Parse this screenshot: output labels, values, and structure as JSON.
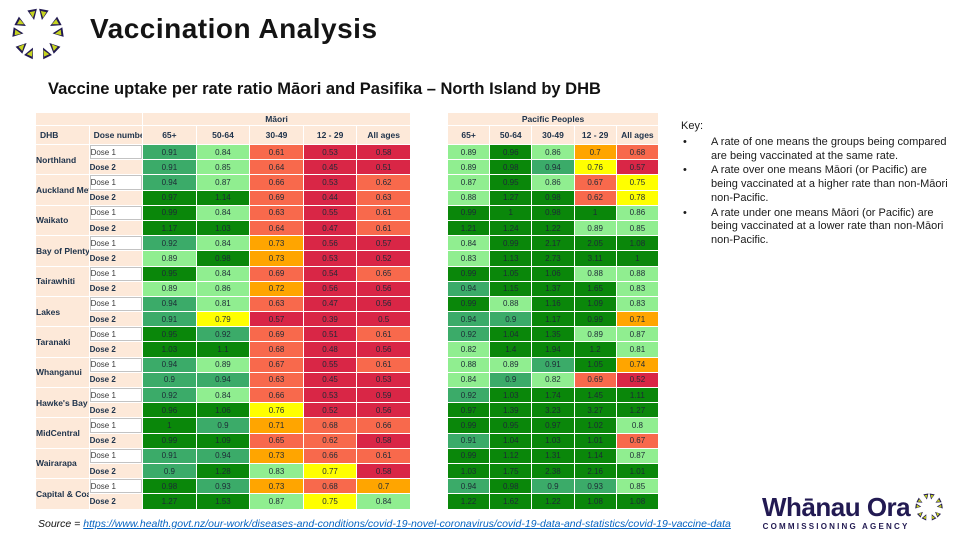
{
  "header": {
    "title": "Vaccination Analysis"
  },
  "subtitle": "Vaccine uptake per rate ratio Māori and Pasifika – North Island by DHB",
  "colors": {
    "dg": "#0a870a",
    "mg": "#3bab69",
    "lg": "#90ee90",
    "ye": "#ffff00",
    "am": "#ffa500",
    "sa": "#f8694c",
    "re": "#d92646",
    "header_peach": "#fde9d9",
    "navy_text": "#20344c",
    "link_blue": "#0563c1",
    "brand_navy": "#221a52",
    "brand_yellow": "#c6d420"
  },
  "tables": {
    "maori": {
      "group_header": "Māori",
      "row_header_cols": [
        "DHB",
        "Dose number"
      ],
      "value_cols": [
        "65+",
        "50-64",
        "30-49",
        "12 - 29",
        "All ages"
      ],
      "rows": [
        {
          "dhb": "Northland",
          "doses": [
            {
              "label": "Dose 1",
              "values": [
                "0.91",
                "0.84",
                "0.61",
                "0.53",
                "0.58"
              ],
              "colors": [
                "mg",
                "lg",
                "sa",
                "re",
                "re"
              ]
            },
            {
              "label": "Dose 2",
              "values": [
                "0.91",
                "0.85",
                "0.64",
                "0.45",
                "0.51"
              ],
              "colors": [
                "mg",
                "lg",
                "sa",
                "re",
                "re"
              ]
            }
          ]
        },
        {
          "dhb": "Auckland Metro",
          "doses": [
            {
              "label": "Dose 1",
              "values": [
                "0.94",
                "0.87",
                "0.66",
                "0.53",
                "0.62"
              ],
              "colors": [
                "mg",
                "lg",
                "sa",
                "re",
                "sa"
              ]
            },
            {
              "label": "Dose 2",
              "values": [
                "0.97",
                "1.14",
                "0.69",
                "0.44",
                "0.63"
              ],
              "colors": [
                "dg",
                "dg",
                "sa",
                "re",
                "sa"
              ]
            }
          ]
        },
        {
          "dhb": "Waikato",
          "doses": [
            {
              "label": "Dose 1",
              "values": [
                "0.99",
                "0.84",
                "0.63",
                "0.55",
                "0.61"
              ],
              "colors": [
                "dg",
                "lg",
                "sa",
                "re",
                "sa"
              ]
            },
            {
              "label": "Dose 2",
              "values": [
                "1.17",
                "1.03",
                "0.64",
                "0.47",
                "0.61"
              ],
              "colors": [
                "dg",
                "dg",
                "sa",
                "re",
                "sa"
              ]
            }
          ]
        },
        {
          "dhb": "Bay of Plenty",
          "doses": [
            {
              "label": "Dose 1",
              "values": [
                "0.92",
                "0.84",
                "0.73",
                "0.56",
                "0.57"
              ],
              "colors": [
                "mg",
                "lg",
                "am",
                "re",
                "re"
              ]
            },
            {
              "label": "Dose 2",
              "values": [
                "0.89",
                "0.98",
                "0.73",
                "0.53",
                "0.52"
              ],
              "colors": [
                "lg",
                "dg",
                "am",
                "re",
                "re"
              ]
            }
          ]
        },
        {
          "dhb": "Tairawhiti",
          "doses": [
            {
              "label": "Dose 1",
              "values": [
                "0.95",
                "0.84",
                "0.69",
                "0.54",
                "0.65"
              ],
              "colors": [
                "dg",
                "lg",
                "sa",
                "re",
                "sa"
              ]
            },
            {
              "label": "Dose 2",
              "values": [
                "0.89",
                "0.86",
                "0.72",
                "0.56",
                "0.56"
              ],
              "colors": [
                "lg",
                "lg",
                "am",
                "re",
                "re"
              ]
            }
          ]
        },
        {
          "dhb": "Lakes",
          "doses": [
            {
              "label": "Dose 1",
              "values": [
                "0.94",
                "0.81",
                "0.63",
                "0.47",
                "0.56"
              ],
              "colors": [
                "mg",
                "lg",
                "sa",
                "re",
                "re"
              ]
            },
            {
              "label": "Dose 2",
              "values": [
                "0.91",
                "0.79",
                "0.57",
                "0.39",
                "0.5"
              ],
              "colors": [
                "mg",
                "ye",
                "re",
                "re",
                "re"
              ]
            }
          ]
        },
        {
          "dhb": "Taranaki",
          "doses": [
            {
              "label": "Dose 1",
              "values": [
                "0.95",
                "0.92",
                "0.69",
                "0.51",
                "0.61"
              ],
              "colors": [
                "dg",
                "mg",
                "sa",
                "re",
                "sa"
              ]
            },
            {
              "label": "Dose 2",
              "values": [
                "1.03",
                "1.1",
                "0.68",
                "0.48",
                "0.56"
              ],
              "colors": [
                "dg",
                "dg",
                "sa",
                "re",
                "re"
              ]
            }
          ]
        },
        {
          "dhb": "Whanganui",
          "doses": [
            {
              "label": "Dose 1",
              "values": [
                "0.94",
                "0.89",
                "0.67",
                "0.55",
                "0.61"
              ],
              "colors": [
                "mg",
                "lg",
                "sa",
                "re",
                "sa"
              ]
            },
            {
              "label": "Dose 2",
              "values": [
                "0.9",
                "0.94",
                "0.63",
                "0.45",
                "0.53"
              ],
              "colors": [
                "mg",
                "mg",
                "sa",
                "re",
                "re"
              ]
            }
          ]
        },
        {
          "dhb": "Hawke's Bay",
          "doses": [
            {
              "label": "Dose 1",
              "values": [
                "0.92",
                "0.84",
                "0.66",
                "0.53",
                "0.59"
              ],
              "colors": [
                "mg",
                "lg",
                "sa",
                "re",
                "re"
              ]
            },
            {
              "label": "Dose 2",
              "values": [
                "0.96",
                "1.06",
                "0.76",
                "0.52",
                "0.56"
              ],
              "colors": [
                "dg",
                "dg",
                "ye",
                "re",
                "re"
              ]
            }
          ]
        },
        {
          "dhb": "MidCentral",
          "doses": [
            {
              "label": "Dose 1",
              "values": [
                "1",
                "0.9",
                "0.71",
                "0.68",
                "0.66"
              ],
              "colors": [
                "dg",
                "mg",
                "am",
                "sa",
                "sa"
              ]
            },
            {
              "label": "Dose 2",
              "values": [
                "0.99",
                "1.09",
                "0.65",
                "0.62",
                "0.58"
              ],
              "colors": [
                "dg",
                "dg",
                "sa",
                "sa",
                "re"
              ]
            }
          ]
        },
        {
          "dhb": "Wairarapa",
          "doses": [
            {
              "label": "Dose 1",
              "values": [
                "0.91",
                "0.94",
                "0.73",
                "0.66",
                "0.61"
              ],
              "colors": [
                "mg",
                "mg",
                "am",
                "sa",
                "sa"
              ]
            },
            {
              "label": "Dose 2",
              "values": [
                "0.9",
                "1.28",
                "0.83",
                "0.77",
                "0.58"
              ],
              "colors": [
                "mg",
                "dg",
                "lg",
                "ye",
                "re"
              ]
            }
          ]
        },
        {
          "dhb": "Capital & Coast and Hutt Valley",
          "doses": [
            {
              "label": "Dose 1",
              "values": [
                "0.98",
                "0.93",
                "0.73",
                "0.68",
                "0.7"
              ],
              "colors": [
                "dg",
                "mg",
                "am",
                "sa",
                "am"
              ]
            },
            {
              "label": "Dose 2",
              "values": [
                "1.27",
                "1.53",
                "0.87",
                "0.75",
                "0.84"
              ],
              "colors": [
                "dg",
                "dg",
                "lg",
                "ye",
                "lg"
              ]
            }
          ]
        }
      ]
    },
    "pacific": {
      "group_header": "Pacific Peoples",
      "value_cols": [
        "65+",
        "50-64",
        "30-49",
        "12 - 29",
        "All ages"
      ],
      "rows": [
        {
          "values": [
            "0.89",
            "0.96",
            "0.86",
            "0.7",
            "0.68"
          ],
          "colors": [
            "lg",
            "dg",
            "lg",
            "am",
            "sa"
          ]
        },
        {
          "values": [
            "0.89",
            "0.98",
            "0.94",
            "0.76",
            "0.57"
          ],
          "colors": [
            "lg",
            "dg",
            "mg",
            "ye",
            "re"
          ]
        },
        {
          "values": [
            "0.87",
            "0.95",
            "0.86",
            "0.67",
            "0.75"
          ],
          "colors": [
            "lg",
            "dg",
            "lg",
            "sa",
            "ye"
          ]
        },
        {
          "values": [
            "0.88",
            "1.27",
            "0.98",
            "0.62",
            "0.78"
          ],
          "colors": [
            "lg",
            "dg",
            "dg",
            "sa",
            "ye"
          ]
        },
        {
          "values": [
            "0.99",
            "1",
            "0.98",
            "1",
            "0.86"
          ],
          "colors": [
            "dg",
            "dg",
            "dg",
            "dg",
            "lg"
          ]
        },
        {
          "values": [
            "1.21",
            "1.24",
            "1.22",
            "0.89",
            "0.85"
          ],
          "colors": [
            "dg",
            "dg",
            "dg",
            "lg",
            "lg"
          ]
        },
        {
          "values": [
            "0.84",
            "0.99",
            "2.17",
            "2.05",
            "1.08"
          ],
          "colors": [
            "lg",
            "dg",
            "dg",
            "dg",
            "dg"
          ]
        },
        {
          "values": [
            "0.83",
            "1.13",
            "2.73",
            "3.11",
            "1"
          ],
          "colors": [
            "lg",
            "dg",
            "dg",
            "dg",
            "dg"
          ]
        },
        {
          "values": [
            "0.99",
            "1.05",
            "1.06",
            "0.88",
            "0.88"
          ],
          "colors": [
            "dg",
            "dg",
            "dg",
            "lg",
            "lg"
          ]
        },
        {
          "values": [
            "0.94",
            "1.15",
            "1.37",
            "1.65",
            "0.83"
          ],
          "colors": [
            "mg",
            "dg",
            "dg",
            "dg",
            "lg"
          ]
        },
        {
          "values": [
            "0.99",
            "0.88",
            "1.16",
            "1.09",
            "0.83"
          ],
          "colors": [
            "dg",
            "lg",
            "dg",
            "dg",
            "lg"
          ]
        },
        {
          "values": [
            "0.94",
            "0.9",
            "1.17",
            "0.99",
            "0.71"
          ],
          "colors": [
            "mg",
            "mg",
            "dg",
            "dg",
            "am"
          ]
        },
        {
          "values": [
            "0.92",
            "1.04",
            "1.35",
            "0.89",
            "0.87"
          ],
          "colors": [
            "mg",
            "dg",
            "dg",
            "lg",
            "lg"
          ]
        },
        {
          "values": [
            "0.82",
            "1.4",
            "1.94",
            "1.2",
            "0.81"
          ],
          "colors": [
            "lg",
            "dg",
            "dg",
            "dg",
            "lg"
          ]
        },
        {
          "values": [
            "0.88",
            "0.89",
            "0.91",
            "1.05",
            "0.74"
          ],
          "colors": [
            "lg",
            "lg",
            "mg",
            "dg",
            "am"
          ]
        },
        {
          "values": [
            "0.84",
            "0.9",
            "0.82",
            "0.69",
            "0.52"
          ],
          "colors": [
            "lg",
            "mg",
            "lg",
            "sa",
            "re"
          ]
        },
        {
          "values": [
            "0.92",
            "1.03",
            "1.74",
            "1.45",
            "1.11"
          ],
          "colors": [
            "mg",
            "dg",
            "dg",
            "dg",
            "dg"
          ]
        },
        {
          "values": [
            "0.97",
            "1.39",
            "3.23",
            "3.27",
            "1.27"
          ],
          "colors": [
            "dg",
            "dg",
            "dg",
            "dg",
            "dg"
          ]
        },
        {
          "values": [
            "0.99",
            "0.95",
            "0.97",
            "1.02",
            "0.8"
          ],
          "colors": [
            "dg",
            "dg",
            "dg",
            "dg",
            "lg"
          ]
        },
        {
          "values": [
            "0.91",
            "1.04",
            "1.03",
            "1.01",
            "0.67"
          ],
          "colors": [
            "mg",
            "dg",
            "dg",
            "dg",
            "sa"
          ]
        },
        {
          "values": [
            "0.99",
            "1.12",
            "1.31",
            "1.14",
            "0.87"
          ],
          "colors": [
            "dg",
            "dg",
            "dg",
            "dg",
            "lg"
          ]
        },
        {
          "values": [
            "1.03",
            "1.75",
            "2.38",
            "2.16",
            "1.01"
          ],
          "colors": [
            "dg",
            "dg",
            "dg",
            "dg",
            "dg"
          ]
        },
        {
          "values": [
            "0.94",
            "0.98",
            "0.9",
            "0.93",
            "0.85"
          ],
          "colors": [
            "mg",
            "dg",
            "mg",
            "mg",
            "lg"
          ]
        },
        {
          "values": [
            "1.22",
            "1.62",
            "1.22",
            "1.08",
            "1.08"
          ],
          "colors": [
            "dg",
            "dg",
            "dg",
            "dg",
            "dg"
          ]
        }
      ]
    }
  },
  "key": {
    "title": "Key:",
    "bullet_glyph": "•",
    "bullets": [
      "A rate of one means the groups being compared are being vaccinated at the same rate.",
      "A rate over one means Māori (or Pacific) are being vaccinated at a higher rate than non-Māori non-Pacific.",
      "A rate under one means Māori (or Pacific) are being vaccinated at a lower rate than non-Māori non-Pacific."
    ]
  },
  "source": {
    "prefix": "Source = ",
    "url": "https://www.health.govt.nz/our-work/diseases-and-conditions/covid-19-novel-coronavirus/covid-19-data-and-statistics/covid-19-vaccine-data"
  },
  "footer_logo": {
    "brand": "Whānau Ora",
    "sub": "COMMISSIONING AGENCY"
  }
}
